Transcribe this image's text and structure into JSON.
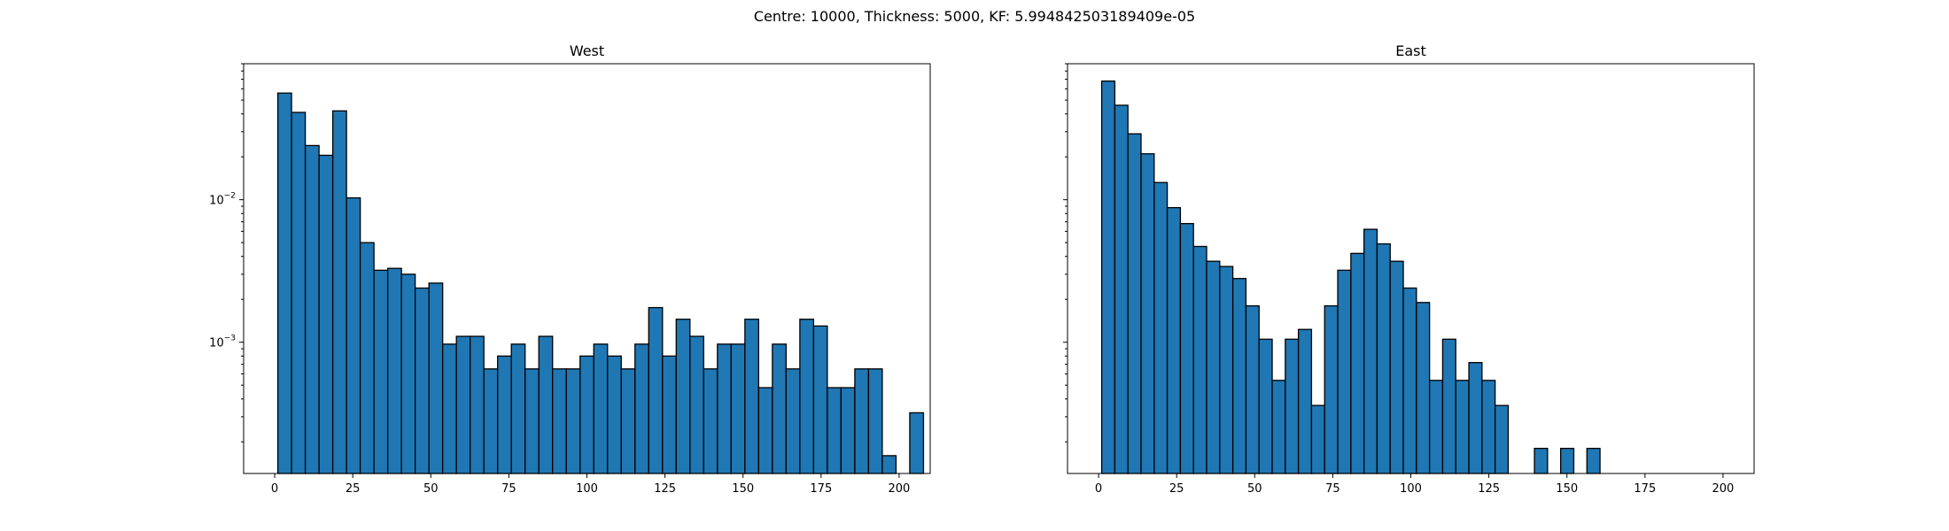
{
  "figure": {
    "suptitle": "Centre: 10000, Thickness: 5000, KF: 5.994842503189409e-05"
  },
  "chart_data": [
    {
      "type": "bar",
      "title": "West",
      "xlabel": "",
      "ylabel": "",
      "yscale": "log",
      "xlim": [
        -9.95,
        209.95
      ],
      "ylim": [
        0.00012,
        0.09
      ],
      "xticks": [
        0,
        25,
        50,
        75,
        100,
        125,
        150,
        175,
        200
      ],
      "yticks": [
        0.001,
        0.01
      ],
      "ytick_labels": [
        {
          "base": "10",
          "exp": "−3"
        },
        {
          "base": "10",
          "exp": "−2"
        }
      ],
      "bin_start": 1,
      "bin_width": 4.4,
      "values": [
        0.056,
        0.041,
        0.024,
        0.0205,
        0.042,
        0.0103,
        0.005,
        0.0032,
        0.0033,
        0.003,
        0.0024,
        0.0026,
        0.00097,
        0.0011,
        0.0011,
        0.00065,
        0.0008,
        0.00097,
        0.00065,
        0.0011,
        0.00065,
        0.00065,
        0.0008,
        0.00097,
        0.0008,
        0.00065,
        0.00097,
        0.00175,
        0.0008,
        0.00145,
        0.0011,
        0.00065,
        0.00097,
        0.00097,
        0.00145,
        0.00048,
        0.00097,
        0.00065,
        0.00145,
        0.0013,
        0.00048,
        0.00048,
        0.00065,
        0.00065,
        0.00016,
        0,
        0.00032
      ]
    },
    {
      "type": "bar",
      "title": "East",
      "xlabel": "",
      "ylabel": "",
      "yscale": "log",
      "xlim": [
        -9.95,
        209.95
      ],
      "ylim": [
        0.00012,
        0.09
      ],
      "xticks": [
        0,
        25,
        50,
        75,
        100,
        125,
        150,
        175,
        200
      ],
      "yticks": [
        0.001,
        0.01
      ],
      "ytick_labels": [],
      "bin_start": 1,
      "bin_width": 4.2,
      "values": [
        0.068,
        0.046,
        0.029,
        0.021,
        0.0132,
        0.0088,
        0.0068,
        0.0047,
        0.0037,
        0.0034,
        0.0028,
        0.0018,
        0.00105,
        0.00054,
        0.00105,
        0.00123,
        0.00036,
        0.0018,
        0.0032,
        0.0042,
        0.0062,
        0.0049,
        0.0037,
        0.0024,
        0.0019,
        0.00054,
        0.00105,
        0.00054,
        0.00072,
        0.00054,
        0.00036,
        0,
        0,
        0.00018,
        0,
        0.00018,
        0,
        0.00018
      ]
    }
  ]
}
